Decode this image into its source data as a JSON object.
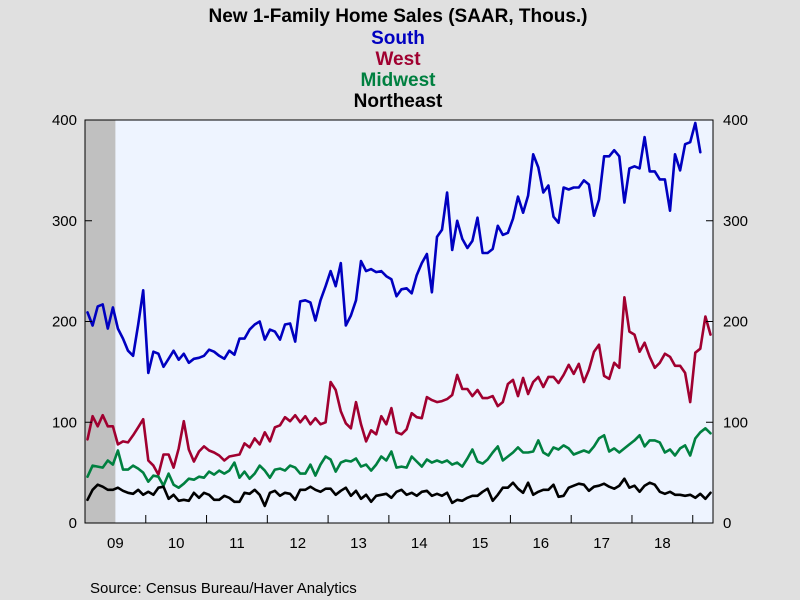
{
  "chart_data": {
    "type": "line",
    "title": "New 1-Family Home Sales (SAAR, Thous.)",
    "source": "Source:  Census Bureau/Haver Analytics",
    "x_start": "2009-01",
    "frequency": "monthly",
    "x_tick_labels": [
      "09",
      "10",
      "11",
      "12",
      "13",
      "14",
      "15",
      "16",
      "17",
      "18"
    ],
    "ylim": [
      0,
      400
    ],
    "y_ticks": [
      0,
      100,
      200,
      300,
      400
    ],
    "y_ticks_right": [
      0,
      100,
      200,
      300,
      400
    ],
    "grid": false,
    "legend": "top-center",
    "recession_shading": {
      "start": "2009-01",
      "end": "2009-06"
    },
    "colors": {
      "plot_background": "#eef4ff",
      "recession": "#c0c0c0"
    },
    "series": [
      {
        "name": "South",
        "color": "#0000c0",
        "values": [
          209,
          196,
          215,
          217,
          193,
          214,
          193,
          183,
          171,
          166,
          197,
          231,
          149,
          170,
          168,
          155,
          163,
          171,
          162,
          168,
          159,
          163,
          164,
          166,
          172,
          170,
          166,
          163,
          171,
          167,
          183,
          183,
          192,
          197,
          200,
          182,
          192,
          190,
          182,
          197,
          198,
          180,
          220,
          221,
          219,
          201,
          221,
          235,
          250,
          235,
          258,
          196,
          206,
          221,
          260,
          250,
          252,
          249,
          250,
          245,
          242,
          225,
          232,
          233,
          228,
          246,
          258,
          267,
          229,
          284,
          291,
          328,
          271,
          300,
          282,
          273,
          280,
          303,
          268,
          268,
          272,
          295,
          286,
          288,
          302,
          324,
          308,
          325,
          366,
          353,
          328,
          335,
          304,
          298,
          333,
          331,
          333,
          333,
          340,
          336,
          305,
          321,
          364,
          364,
          370,
          364,
          318,
          352,
          354,
          352,
          383,
          349,
          349,
          341,
          341,
          310,
          366,
          350,
          376,
          378,
          397,
          368
        ]
      },
      {
        "name": "West",
        "color": "#a00030",
        "values": [
          83,
          106,
          96,
          107,
          96,
          96,
          78,
          81,
          80,
          87,
          95,
          103,
          62,
          57,
          48,
          68,
          68,
          55,
          74,
          101,
          73,
          61,
          71,
          76,
          72,
          70,
          67,
          62,
          66,
          67,
          68,
          79,
          75,
          84,
          78,
          90,
          81,
          95,
          97,
          105,
          101,
          107,
          100,
          106,
          98,
          104,
          98,
          100,
          140,
          132,
          111,
          99,
          94,
          120,
          98,
          81,
          92,
          88,
          106,
          98,
          114,
          90,
          88,
          93,
          109,
          105,
          104,
          125,
          122,
          120,
          121,
          123,
          127,
          147,
          133,
          133,
          126,
          132,
          124,
          124,
          126,
          116,
          120,
          138,
          142,
          126,
          144,
          128,
          140,
          145,
          135,
          145,
          145,
          139,
          147,
          157,
          148,
          158,
          140,
          152,
          170,
          177,
          146,
          143,
          159,
          154,
          224,
          190,
          187,
          170,
          179,
          165,
          154,
          159,
          168,
          165,
          156,
          156,
          149,
          120,
          169,
          173,
          205,
          187
        ]
      },
      {
        "name": "Midwest",
        "color": "#008040",
        "values": [
          46,
          57,
          56,
          55,
          62,
          58,
          72,
          53,
          53,
          57,
          54,
          50,
          41,
          47,
          46,
          37,
          49,
          38,
          35,
          39,
          44,
          43,
          46,
          45,
          51,
          48,
          52,
          49,
          52,
          60,
          45,
          51,
          44,
          49,
          57,
          52,
          45,
          53,
          54,
          52,
          57,
          55,
          49,
          49,
          58,
          47,
          58,
          66,
          63,
          51,
          60,
          62,
          61,
          64,
          56,
          58,
          52,
          58,
          66,
          62,
          71,
          55,
          56,
          55,
          66,
          61,
          56,
          63,
          60,
          62,
          60,
          62,
          58,
          60,
          56,
          64,
          73,
          61,
          59,
          63,
          70,
          76,
          62,
          66,
          70,
          75,
          70,
          70,
          71,
          82,
          70,
          67,
          75,
          73,
          77,
          74,
          68,
          70,
          72,
          70,
          76,
          84,
          87,
          71,
          74,
          70,
          74,
          78,
          82,
          87,
          76,
          82,
          82,
          80,
          70,
          73,
          67,
          74,
          77,
          67,
          84,
          90,
          94,
          89
        ]
      },
      {
        "name": "Northeast",
        "color": "#000000",
        "values": [
          23,
          33,
          38,
          36,
          33,
          33,
          35,
          32,
          30,
          29,
          33,
          28,
          31,
          28,
          35,
          36,
          24,
          28,
          22,
          23,
          22,
          30,
          25,
          30,
          28,
          23,
          23,
          27,
          25,
          21,
          21,
          30,
          29,
          33,
          28,
          17,
          30,
          32,
          27,
          30,
          29,
          23,
          33,
          33,
          36,
          33,
          31,
          34,
          34,
          28,
          32,
          35,
          27,
          32,
          24,
          28,
          21,
          27,
          28,
          29,
          25,
          31,
          33,
          28,
          30,
          27,
          31,
          32,
          27,
          29,
          27,
          30,
          20,
          23,
          22,
          25,
          27,
          27,
          31,
          34,
          22,
          28,
          35,
          35,
          40,
          34,
          30,
          40,
          28,
          31,
          33,
          33,
          38,
          26,
          27,
          35,
          37,
          39,
          38,
          32,
          36,
          37,
          39,
          36,
          34,
          37,
          44,
          35,
          37,
          31,
          37,
          40,
          38,
          31,
          29,
          31,
          28,
          28,
          27,
          28,
          25,
          29,
          24,
          30
        ]
      }
    ]
  }
}
